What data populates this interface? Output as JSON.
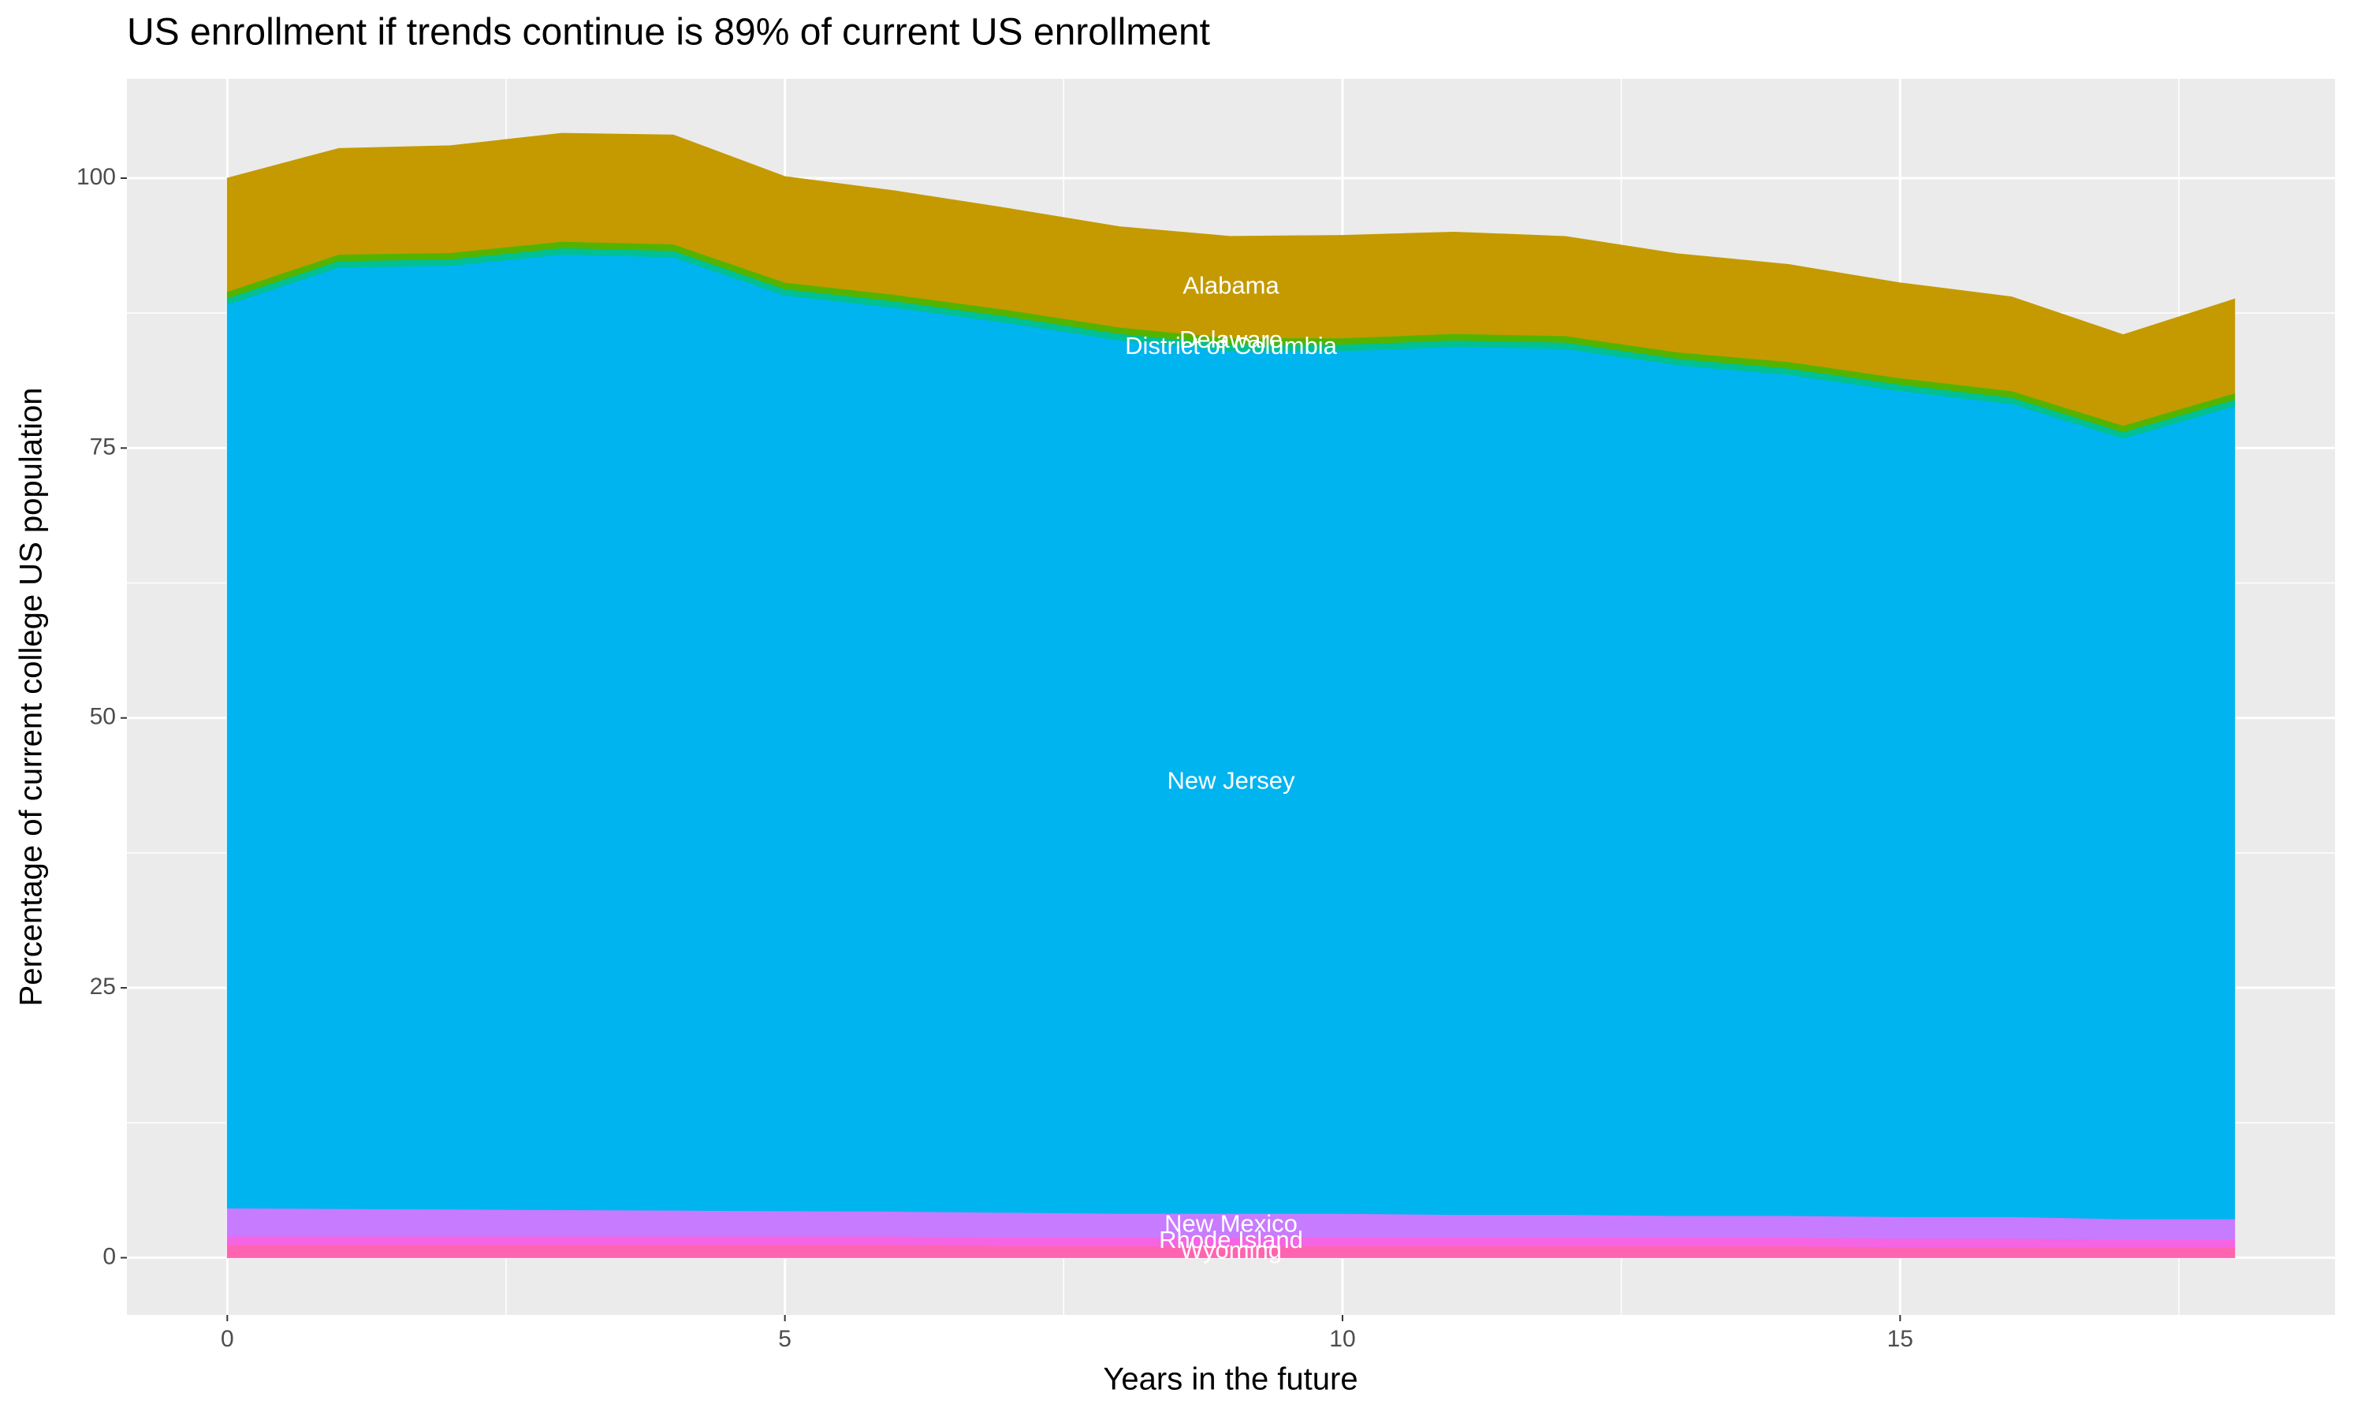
{
  "chart_data": {
    "type": "stacked-area",
    "title": "US enrollment if trends continue is 89% of current US enrollment",
    "x_label": "Years in the future",
    "y_label": "Percentage of current college US population",
    "x": [
      0,
      1,
      2,
      3,
      4,
      5,
      6,
      7,
      8,
      9,
      10,
      11,
      12,
      13,
      14,
      15,
      16,
      17,
      18
    ],
    "series": [
      {
        "name": "Alabama",
        "color": "#C49A00",
        "values": [
          10.5,
          9.8,
          9.9,
          10.0,
          10.1,
          9.8,
          9.6,
          9.4,
          9.3,
          9.4,
          9.5,
          9.4,
          9.2,
          9.1,
          9.0,
          8.8,
          8.7,
          8.4,
          8.7
        ]
      },
      {
        "name": "Delaware",
        "color": "#53B400",
        "values": [
          0.6,
          0.6,
          0.6,
          0.6,
          0.6,
          0.6,
          0.6,
          0.6,
          0.6,
          0.6,
          0.6,
          0.6,
          0.6,
          0.6,
          0.6,
          0.6,
          0.6,
          0.6,
          0.6
        ]
      },
      {
        "name": "District of Columbia",
        "color": "#00C094",
        "values": [
          0.6,
          0.6,
          0.6,
          0.6,
          0.6,
          0.6,
          0.6,
          0.6,
          0.6,
          0.6,
          0.6,
          0.6,
          0.6,
          0.6,
          0.6,
          0.6,
          0.6,
          0.6,
          0.6
        ]
      },
      {
        "name": "New Jersey",
        "color": "#00B4F0",
        "values": [
          83.7,
          87.2,
          87.4,
          88.5,
          88.3,
          84.8,
          83.7,
          82.4,
          80.9,
          79.9,
          79.9,
          80.4,
          80.2,
          78.8,
          77.9,
          76.5,
          75.3,
          72.3,
          75.3
        ]
      },
      {
        "name": "New Mexico",
        "color": "#C77CFF",
        "values": [
          2.6,
          2.55,
          2.5,
          2.45,
          2.4,
          2.35,
          2.3,
          2.3,
          2.2,
          2.2,
          2.2,
          2.1,
          2.1,
          2.0,
          2.0,
          2.0,
          2.0,
          1.9,
          1.9
        ]
      },
      {
        "name": "Rhode Island",
        "color": "#F564E3",
        "values": [
          0.8,
          0.8,
          0.8,
          0.8,
          0.8,
          0.8,
          0.8,
          0.8,
          0.8,
          0.8,
          0.8,
          0.8,
          0.8,
          0.8,
          0.8,
          0.8,
          0.8,
          0.7,
          0.7
        ]
      },
      {
        "name": "Wyoming",
        "color": "#FF64B0",
        "values": [
          1.2,
          1.2,
          1.2,
          1.2,
          1.2,
          1.2,
          1.2,
          1.1,
          1.1,
          1.1,
          1.1,
          1.1,
          1.1,
          1.1,
          1.1,
          1.0,
          1.0,
          1.0,
          1.0
        ]
      }
    ],
    "xlim": [
      -0.9,
      18.9
    ],
    "ylim": [
      -5.3,
      109.2
    ],
    "xticks": [
      0,
      5,
      10,
      15
    ],
    "yticks": [
      0,
      25,
      50,
      75,
      100
    ],
    "grid": true
  }
}
